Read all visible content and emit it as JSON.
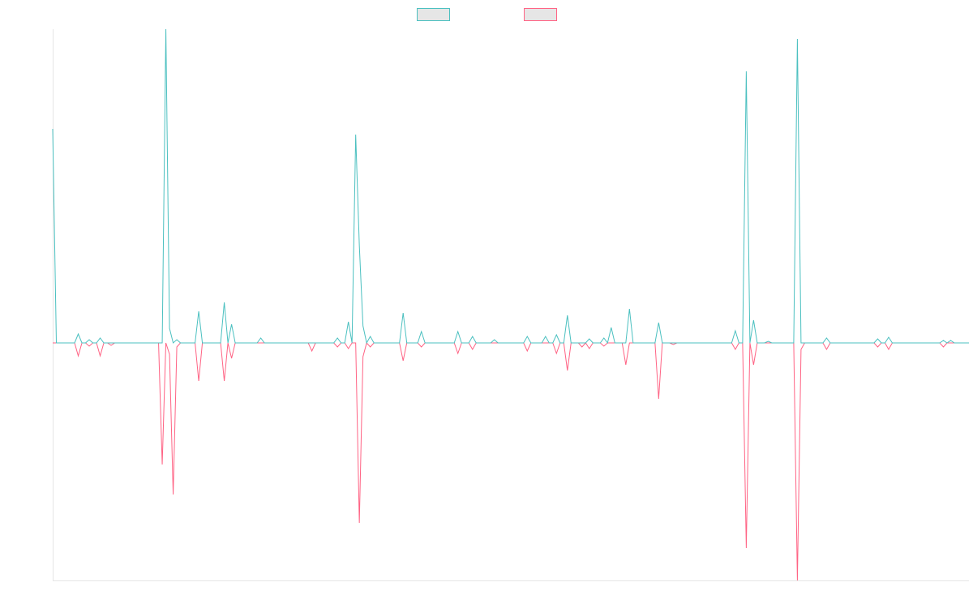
{
  "chart_data": {
    "type": "line",
    "ylim": [
      -293,
      387
    ],
    "series": [
      {
        "color": "#4bc0c0",
        "values": [
          264,
          0,
          0,
          0,
          0,
          0,
          0,
          11,
          0,
          0,
          4,
          0,
          0,
          6,
          0,
          0,
          0,
          0,
          0,
          0,
          0,
          0,
          0,
          0,
          0,
          0,
          0,
          0,
          0,
          0,
          0,
          387,
          18,
          0,
          4,
          0,
          0,
          0,
          0,
          0,
          39,
          0,
          0,
          0,
          0,
          0,
          0,
          50,
          0,
          23,
          0,
          0,
          0,
          0,
          0,
          0,
          0,
          6,
          0,
          0,
          0,
          0,
          0,
          0,
          0,
          0,
          0,
          0,
          0,
          0,
          0,
          0,
          0,
          0,
          0,
          0,
          0,
          0,
          6,
          0,
          0,
          26,
          0,
          257,
          120,
          21,
          0,
          8,
          0,
          0,
          0,
          0,
          0,
          0,
          0,
          0,
          37,
          0,
          0,
          0,
          0,
          14,
          0,
          0,
          0,
          0,
          0,
          0,
          0,
          0,
          0,
          14,
          0,
          0,
          0,
          8,
          0,
          0,
          0,
          0,
          0,
          4,
          0,
          0,
          0,
          0,
          0,
          0,
          0,
          0,
          8,
          0,
          0,
          0,
          0,
          8,
          0,
          0,
          10,
          0,
          0,
          34,
          0,
          0,
          0,
          0,
          0,
          5,
          0,
          0,
          0,
          6,
          0,
          19,
          0,
          0,
          0,
          0,
          42,
          0,
          0,
          0,
          0,
          0,
          0,
          0,
          25,
          0,
          0,
          0,
          0,
          0,
          0,
          0,
          0,
          0,
          0,
          0,
          0,
          0,
          0,
          0,
          0,
          0,
          0,
          0,
          0,
          15,
          0,
          0,
          335,
          0,
          28,
          0,
          0,
          0,
          2,
          0,
          0,
          0,
          0,
          0,
          0,
          0,
          375,
          0,
          0,
          0,
          0,
          0,
          0,
          0,
          6,
          0,
          0,
          0,
          0,
          0,
          0,
          0,
          0,
          0,
          0,
          0,
          0,
          0,
          5,
          0,
          0,
          7,
          0,
          0,
          0,
          0,
          0,
          0,
          0,
          0,
          0,
          0,
          0,
          0,
          0,
          0,
          3,
          0,
          3,
          0,
          0,
          0,
          0,
          0
        ]
      },
      {
        "color": "#ff6384",
        "values": [
          0,
          0,
          0,
          0,
          0,
          0,
          0,
          -16,
          0,
          0,
          -4,
          0,
          0,
          -16,
          0,
          0,
          -3,
          0,
          0,
          0,
          0,
          0,
          0,
          0,
          0,
          0,
          0,
          0,
          0,
          0,
          -150,
          0,
          -14,
          -187,
          -5,
          0,
          0,
          0,
          0,
          0,
          -47,
          0,
          0,
          0,
          0,
          0,
          0,
          -47,
          0,
          -19,
          0,
          0,
          0,
          0,
          0,
          0,
          0,
          0,
          0,
          0,
          0,
          0,
          0,
          0,
          0,
          0,
          0,
          0,
          0,
          0,
          0,
          -10,
          0,
          0,
          0,
          0,
          0,
          0,
          -5,
          0,
          0,
          -7,
          0,
          0,
          -222,
          -17,
          0,
          -5,
          0,
          0,
          0,
          0,
          0,
          0,
          0,
          0,
          -22,
          0,
          0,
          0,
          0,
          -5,
          0,
          0,
          0,
          0,
          0,
          0,
          0,
          0,
          0,
          -13,
          0,
          0,
          0,
          -8,
          0,
          0,
          0,
          0,
          0,
          0,
          0,
          0,
          0,
          0,
          0,
          0,
          0,
          0,
          -10,
          0,
          0,
          0,
          0,
          0,
          0,
          0,
          -13,
          0,
          0,
          -34,
          0,
          0,
          0,
          -5,
          0,
          -7,
          0,
          0,
          0,
          -4,
          0,
          0,
          0,
          0,
          0,
          -27,
          0,
          0,
          0,
          0,
          0,
          0,
          0,
          0,
          -69,
          0,
          0,
          0,
          -2,
          0,
          0,
          0,
          0,
          0,
          0,
          0,
          0,
          0,
          0,
          0,
          0,
          0,
          0,
          0,
          0,
          -8,
          0,
          0,
          -253,
          0,
          -27,
          0,
          0,
          0,
          0,
          0,
          0,
          0,
          0,
          0,
          0,
          0,
          -293,
          -8,
          0,
          0,
          0,
          0,
          0,
          0,
          -8,
          0,
          0,
          0,
          0,
          0,
          0,
          0,
          0,
          0,
          0,
          0,
          0,
          0,
          -5,
          0,
          0,
          -8,
          0,
          0,
          0,
          0,
          0,
          0,
          0,
          0,
          0,
          0,
          0,
          0,
          0,
          0,
          -5,
          0,
          0,
          0,
          0,
          0,
          0,
          0
        ]
      }
    ]
  }
}
